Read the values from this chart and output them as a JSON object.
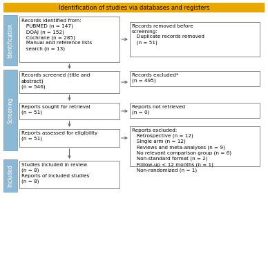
{
  "title": "Identification of studies via databases and registers",
  "title_bg": "#E8A800",
  "box_bg": "#FFFFFF",
  "box_border": "#888888",
  "sidebar_color": "#8BB8D4",
  "sidebar_border": "#6699BB",
  "left_boxes": [
    "Records identified from:\n   PUBMED (n = 147)\n   DOAJ (n = 152)\n   Cochrane (n = 285)\n   Manual and reference lists\n   search (n = 13)",
    "Records screened (title and\nabstract)\n(n = 546)",
    "Reports sought for retrieval\n(n = 51)",
    "Reports assessed for eligibility\n(n = 51)",
    "Studies included in review\n(n = 8)\nReports of included studies\n(n = 8)"
  ],
  "right_boxes": [
    "Records removed before\nscreening:\n   Duplicate records removed\n   (n = 51)",
    "Records excluded*\n(n = 495)",
    "Reports not retrieved\n(n = 0)",
    "Reports excluded:\n   Retrospective (n = 12)\n   Single arm (n = 12)\n   Reviews and meta-analyses (n = 9)\n   No relevant comparison group (n = 6)\n   Non-standard format (n = 2)\n   Follow-up < 12 months (n = 1)\n   Non-randomized (n = 1)"
  ],
  "sidebar_labels": [
    "Identification",
    "Screening",
    "Included"
  ],
  "arrow_color": "#666666",
  "font_size": 5.2,
  "title_font_size": 6.0
}
